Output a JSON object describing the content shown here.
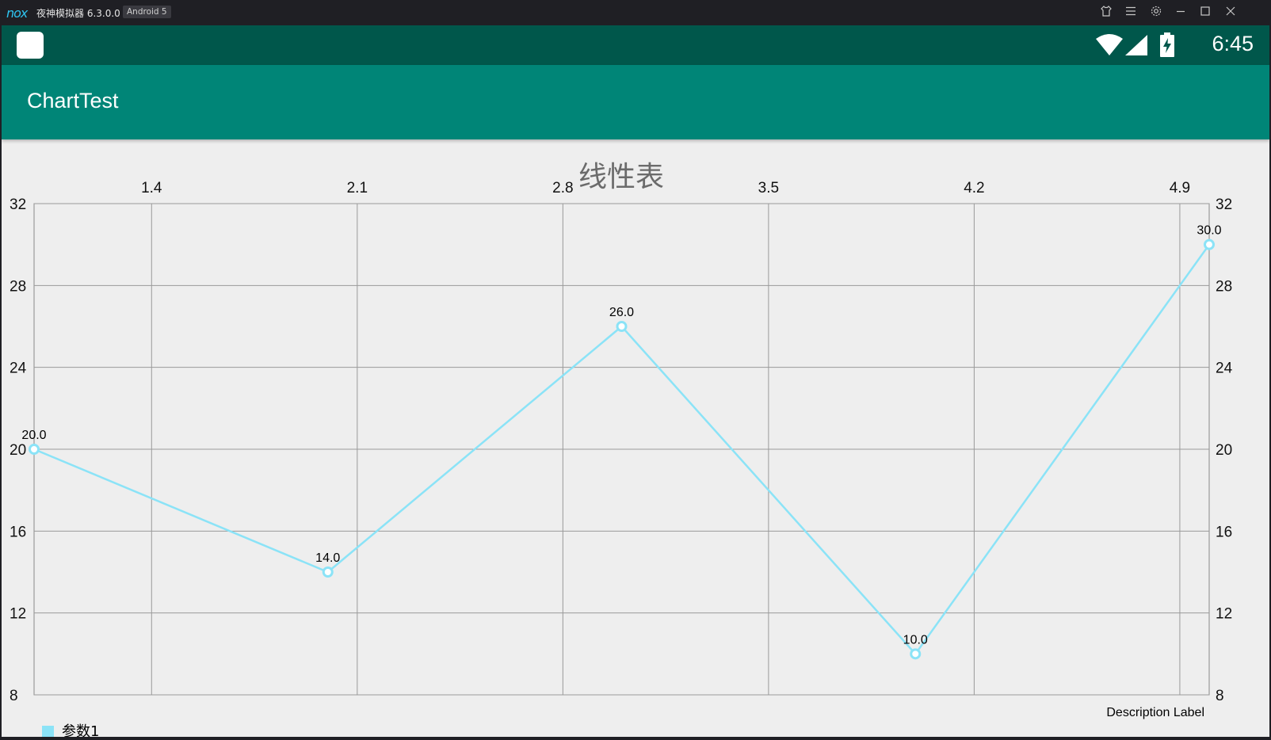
{
  "window": {
    "logo_text": "nox",
    "title": "夜神模拟器 6.3.0.0",
    "badge": "Android 5"
  },
  "statusbar": {
    "time": "6:45"
  },
  "appbar": {
    "title": "ChartTest"
  },
  "chart_data": {
    "type": "line",
    "title": "线性表",
    "x_ticks": [
      "1.4",
      "2.1",
      "2.8",
      "3.5",
      "4.2",
      "4.9"
    ],
    "y_ticks": [
      "32",
      "28",
      "24",
      "20",
      "16",
      "12",
      "8"
    ],
    "ylim": [
      8,
      32
    ],
    "xlim": [
      1.0,
      5.0
    ],
    "grid": true,
    "axis_positions": [
      "top",
      "left",
      "right"
    ],
    "description": "Description Label",
    "legend_position": "bottom-left",
    "series": [
      {
        "name": "参数1",
        "color": "#8be3f7",
        "x": [
          1,
          2,
          3,
          4,
          5
        ],
        "y": [
          20,
          14,
          26,
          10,
          30
        ],
        "labels": [
          "20.0",
          "14.0",
          "26.0",
          "10.0",
          "30.0"
        ]
      }
    ]
  }
}
